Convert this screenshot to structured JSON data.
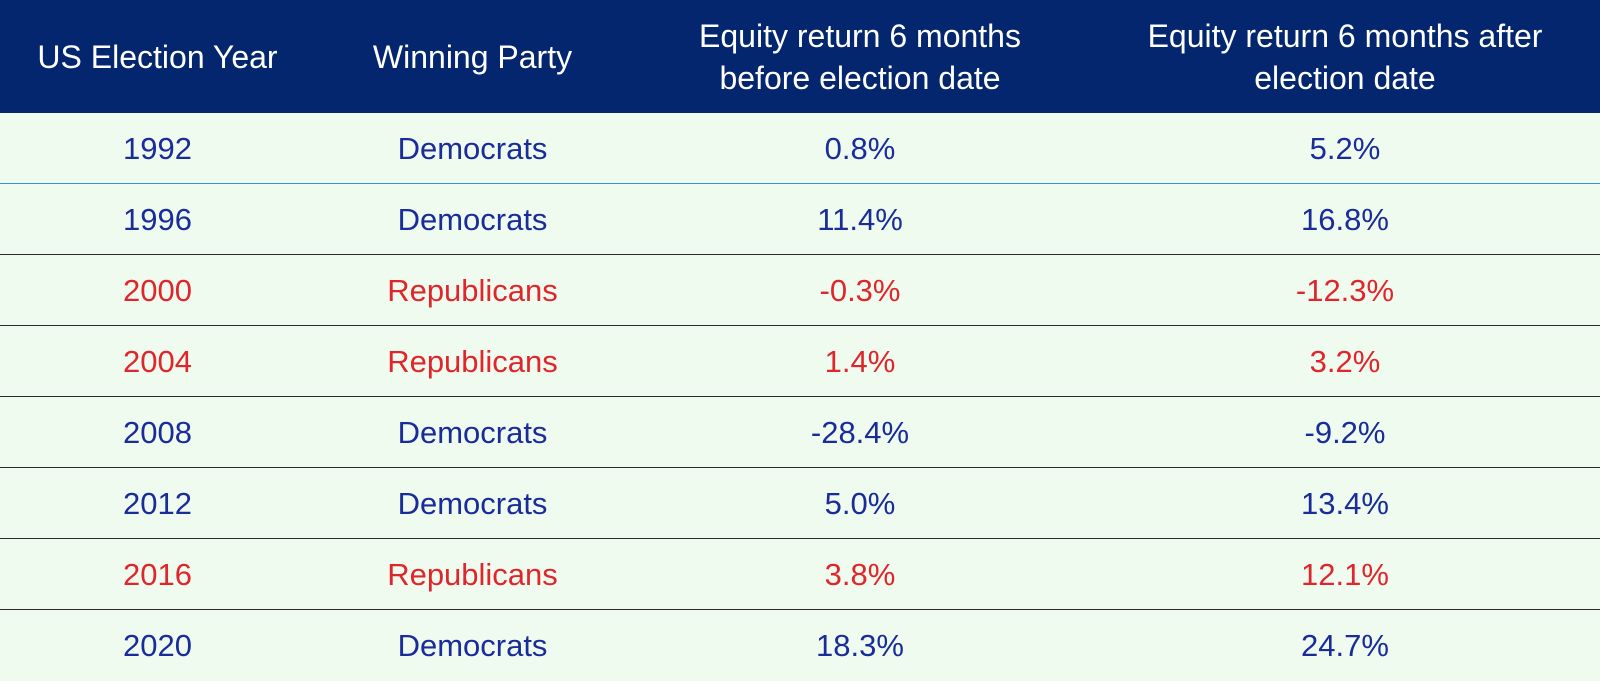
{
  "colors": {
    "header_bg": "#03266e",
    "header_text": "#ffffff",
    "row_bg": "#effbee",
    "democrats": "#1a2b9a",
    "republicans": "#e0262c"
  },
  "chart_data": {
    "type": "table",
    "columns": [
      "US Election Year",
      "Winning Party",
      "Equity return 6 months\nbefore election date",
      "Equity return 6 months after\nelection date"
    ],
    "rows": [
      {
        "year": "1992",
        "party": "Democrats",
        "before": "0.8%",
        "after": "5.2%"
      },
      {
        "year": "1996",
        "party": "Democrats",
        "before": "11.4%",
        "after": "16.8%"
      },
      {
        "year": "2000",
        "party": "Republicans",
        "before": "-0.3%",
        "after": "-12.3%"
      },
      {
        "year": "2004",
        "party": "Republicans",
        "before": "1.4%",
        "after": "3.2%"
      },
      {
        "year": "2008",
        "party": "Democrats",
        "before": "-28.4%",
        "after": "-9.2%"
      },
      {
        "year": "2012",
        "party": "Democrats",
        "before": "5.0%",
        "after": "13.4%"
      },
      {
        "year": "2016",
        "party": "Republicans",
        "before": "3.8%",
        "after": "12.1%"
      },
      {
        "year": "2020",
        "party": "Democrats",
        "before": "18.3%",
        "after": "24.7%"
      }
    ]
  }
}
